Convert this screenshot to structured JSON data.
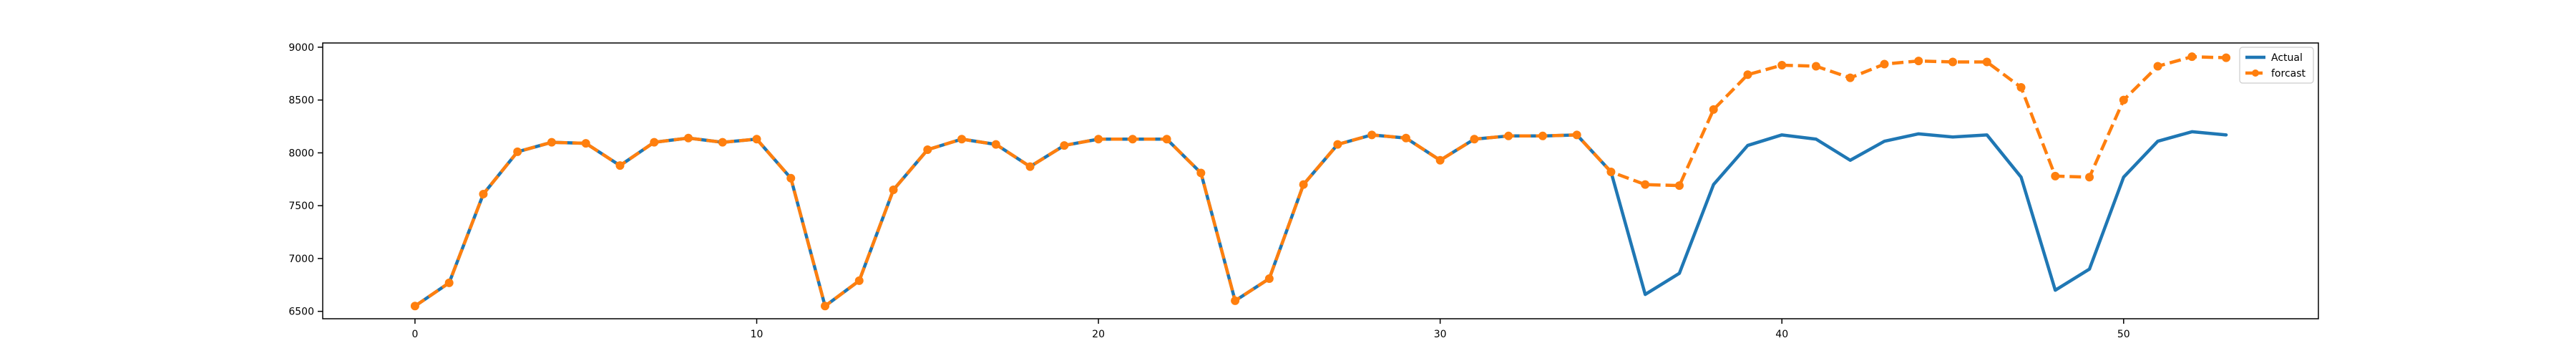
{
  "chart_data": {
    "type": "line",
    "title": "",
    "xlabel": "",
    "ylabel": "",
    "xlim": [
      -2.7,
      55.7
    ],
    "ylim": [
      6430,
      9040
    ],
    "x_ticks": [
      0,
      10,
      20,
      30,
      40,
      50
    ],
    "y_ticks": [
      6500,
      7000,
      7500,
      8000,
      8500,
      9000
    ],
    "grid": false,
    "legend": {
      "position": "top-right",
      "entries": [
        "Actual",
        "forcast"
      ]
    },
    "series": [
      {
        "name": "Actual",
        "color": "#1f77b4",
        "style": "solid",
        "x": [
          0,
          1,
          2,
          3,
          4,
          5,
          6,
          7,
          8,
          9,
          10,
          11,
          12,
          13,
          14,
          15,
          16,
          17,
          18,
          19,
          20,
          21,
          22,
          23,
          24,
          25,
          26,
          27,
          28,
          29,
          30,
          31,
          32,
          33,
          34,
          35,
          36,
          37,
          38,
          39,
          40,
          41,
          42,
          43,
          44,
          45,
          46,
          47,
          48,
          49,
          50,
          51,
          52,
          53
        ],
        "values": [
          6550,
          6770,
          7610,
          8010,
          8100,
          8090,
          7880,
          8100,
          8140,
          8100,
          8130,
          7760,
          6550,
          6790,
          7650,
          8030,
          8130,
          8080,
          7870,
          8070,
          8130,
          8130,
          8130,
          7810,
          6600,
          6810,
          7700,
          8080,
          8170,
          8140,
          7930,
          8130,
          8160,
          8160,
          8170,
          7820,
          6660,
          6860,
          7700,
          8070,
          8170,
          8130,
          7930,
          8110,
          8180,
          8150,
          8170,
          7770,
          6700,
          6900,
          7770,
          8110,
          8200,
          8170
        ]
      },
      {
        "name": "forcast",
        "color": "#ff7f0e",
        "style": "dashed",
        "marker": "circle",
        "x": [
          0,
          1,
          2,
          3,
          4,
          5,
          6,
          7,
          8,
          9,
          10,
          11,
          12,
          13,
          14,
          15,
          16,
          17,
          18,
          19,
          20,
          21,
          22,
          23,
          24,
          25,
          26,
          27,
          28,
          29,
          30,
          31,
          32,
          33,
          34,
          35,
          36,
          37,
          38,
          39,
          40,
          41,
          42,
          43,
          44,
          45,
          46,
          47,
          48,
          49,
          50,
          51,
          52,
          53
        ],
        "values": [
          6550,
          6770,
          7610,
          8010,
          8100,
          8090,
          7880,
          8100,
          8140,
          8100,
          8130,
          7760,
          6550,
          6790,
          7650,
          8030,
          8130,
          8080,
          7870,
          8070,
          8130,
          8130,
          8130,
          7810,
          6600,
          6810,
          7700,
          8080,
          8170,
          8140,
          7930,
          8130,
          8160,
          8160,
          8170,
          7820,
          7700,
          7690,
          8410,
          8740,
          8830,
          8820,
          8710,
          8840,
          8870,
          8860,
          8860,
          8620,
          7780,
          7770,
          8500,
          8820,
          8910,
          8900
        ]
      }
    ]
  }
}
